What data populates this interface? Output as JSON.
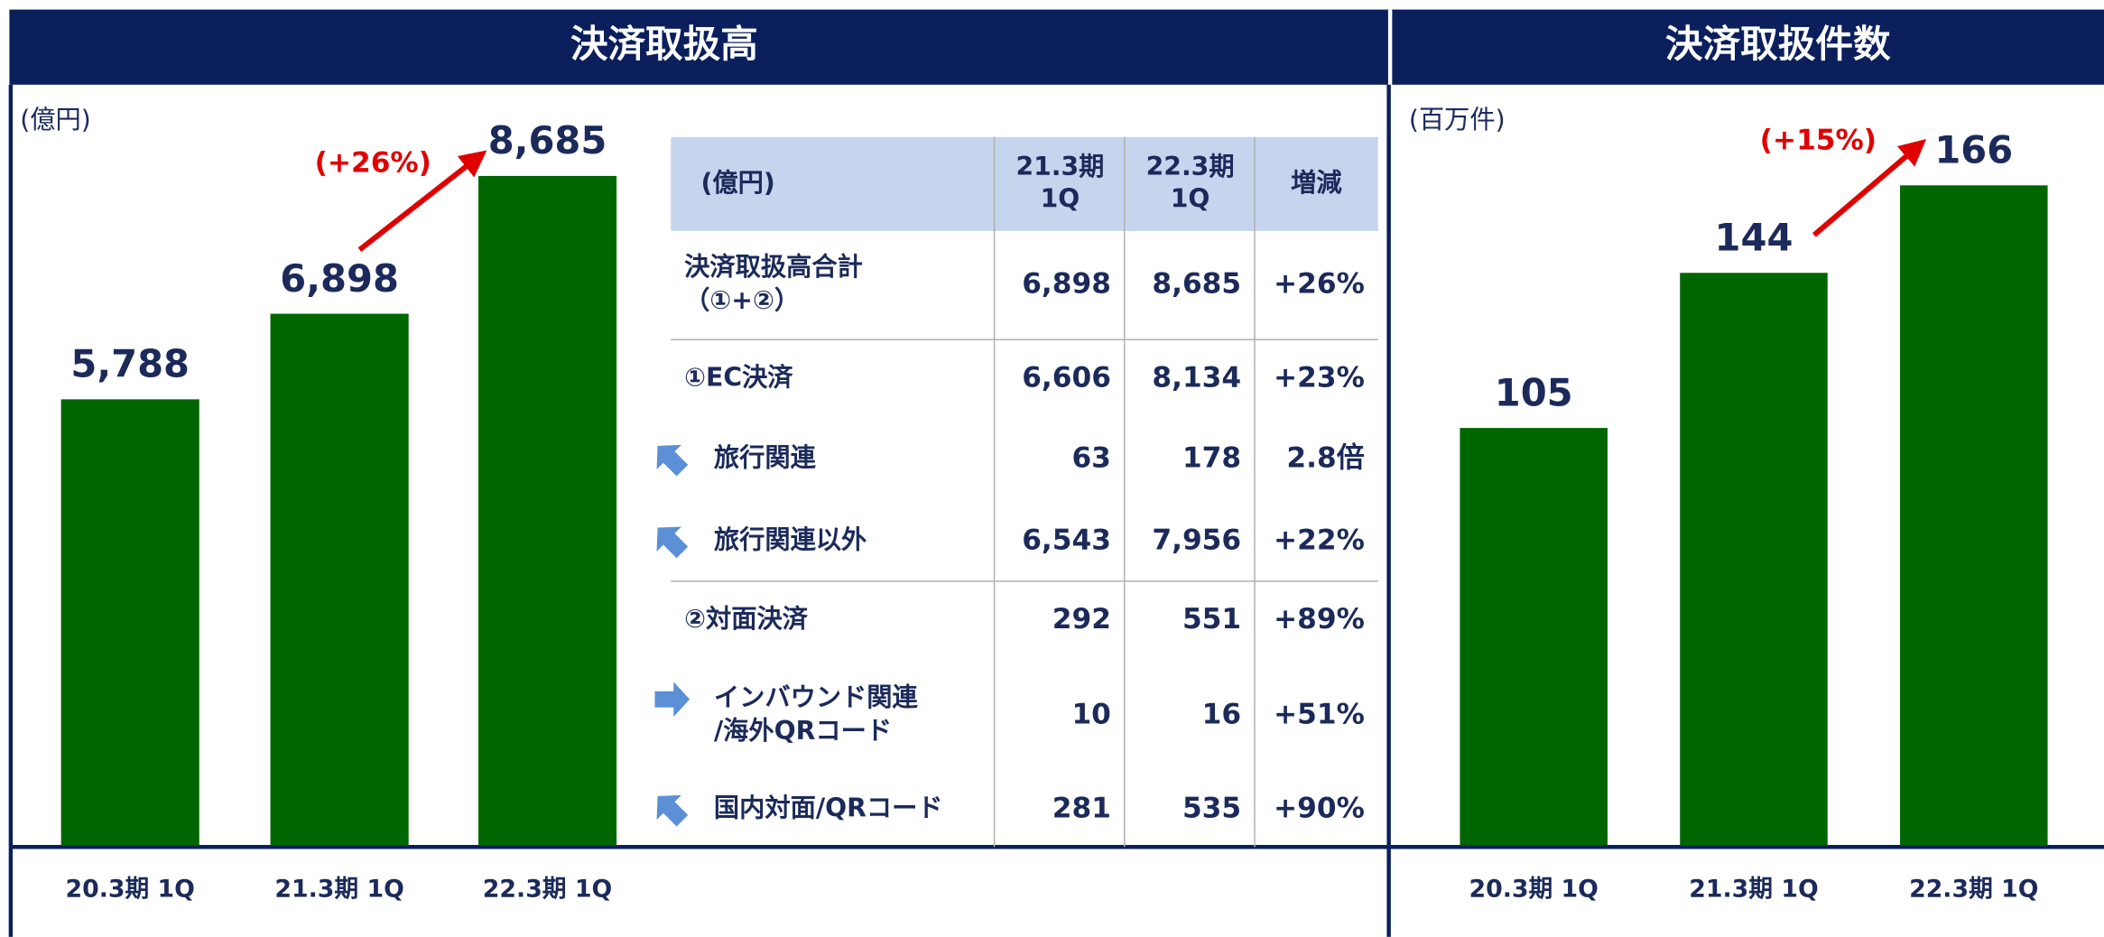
{
  "chart_data": [
    {
      "type": "bar",
      "title": "決済取扱高",
      "unit_label": "(億円)",
      "categories": [
        "20.3期 1Q",
        "21.3期 1Q",
        "22.3期 1Q"
      ],
      "values": [
        5788,
        6898,
        8685
      ],
      "value_labels": [
        "5,788",
        "6,898",
        "8,685"
      ],
      "color": "#006600",
      "annotation": "(+26%)"
    },
    {
      "type": "bar",
      "title": "決済取扱件数",
      "unit_label": "(百万件)",
      "categories": [
        "20.3期 1Q",
        "21.3期 1Q",
        "22.3期 1Q"
      ],
      "values": [
        105,
        144,
        166
      ],
      "color": "#006600",
      "annotation": "(+15%)"
    }
  ],
  "table": {
    "header": [
      [
        "(億円)"
      ],
      [
        "21.3期",
        "1Q"
      ],
      [
        "22.3期",
        "1Q"
      ],
      [
        "増減"
      ]
    ],
    "rows": [
      {
        "label": [
          "決済取扱高合計",
          "（①+②）"
        ],
        "cells": [
          "6,898",
          "8,685",
          "+26%"
        ]
      },
      {
        "label": [
          "①EC決済"
        ],
        "cells": [
          "6,606",
          "8,134",
          "+23%"
        ]
      },
      {
        "label": [
          "旅行関連"
        ],
        "cells": [
          "63",
          "178",
          "2.8倍"
        ]
      },
      {
        "label": [
          "旅行関連以外"
        ],
        "cells": [
          "6,543",
          "7,956",
          "+22%"
        ]
      },
      {
        "label": [
          "②対面決済"
        ],
        "cells": [
          "292",
          "551",
          "+89%"
        ]
      },
      {
        "label": [
          "インバウンド関連",
          "/海外QRコード"
        ],
        "cells": [
          "10",
          "16",
          "+51%"
        ]
      },
      {
        "label": [
          "国内対面/QRコード"
        ],
        "cells": [
          "281",
          "535",
          "+90%"
        ]
      }
    ]
  }
}
